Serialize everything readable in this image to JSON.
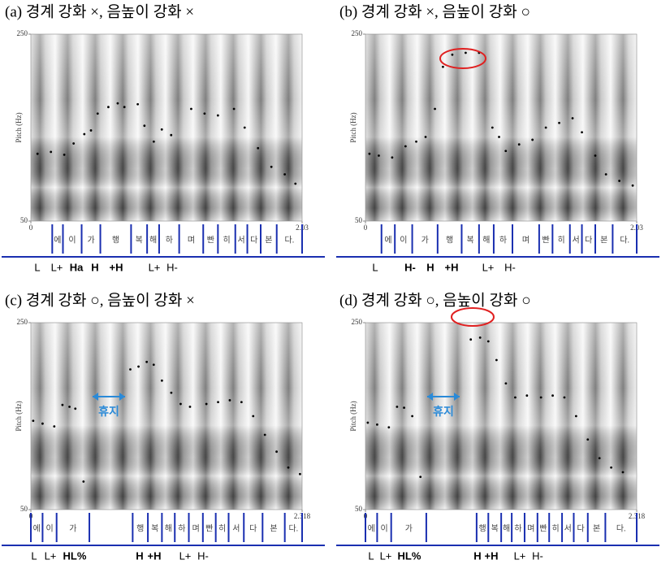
{
  "chart_data": [
    {
      "type": "scatter",
      "title": "(a) 경계 강화 ×, 음높이 강화 ×",
      "ylabel": "Pitch (Hz)",
      "ylim": [
        50,
        250
      ],
      "yticks": [
        50,
        250
      ],
      "xlim": [
        0,
        2.03
      ],
      "xticks": [
        0,
        2.03
      ],
      "color": "#000000",
      "x": [
        0.05,
        0.15,
        0.25,
        0.32,
        0.4,
        0.45,
        0.5,
        0.58,
        0.65,
        0.7,
        0.8,
        0.85,
        0.92,
        0.98,
        1.05,
        1.2,
        1.3,
        1.4,
        1.52,
        1.6,
        1.7,
        1.8,
        1.9,
        1.98
      ],
      "values": [
        122,
        124,
        121,
        133,
        143,
        147,
        165,
        172,
        176,
        172,
        175,
        152,
        135,
        148,
        142,
        170,
        165,
        163,
        170,
        150,
        128,
        108,
        100,
        90
      ],
      "syllables": [
        "에",
        "이",
        "가",
        "행",
        "복",
        "해",
        "하",
        "며",
        "빤",
        "히",
        "서",
        "다",
        "본",
        "다."
      ],
      "boundaries": [
        0.16,
        0.24,
        0.38,
        0.52,
        0.75,
        0.87,
        0.96,
        1.11,
        1.29,
        1.4,
        1.53,
        1.62,
        1.72,
        1.84,
        2.03
      ],
      "tones": [
        "L",
        "L+",
        "Ha",
        "H",
        "+H",
        "L+",
        "H-"
      ],
      "tone_highlight": [
        2
      ],
      "highlight_color": "#e02020",
      "tier_color": "#1a2fb0"
    },
    {
      "type": "scatter",
      "title": "(b) 경계 강화 ×, 음높이 강화 ○",
      "ylabel": "Pitch (Hz)",
      "ylim": [
        50,
        250
      ],
      "yticks": [
        50,
        250
      ],
      "xlim": [
        0,
        2.03
      ],
      "xticks": [
        0,
        2.03
      ],
      "color": "#000000",
      "x": [
        0.03,
        0.1,
        0.2,
        0.3,
        0.38,
        0.45,
        0.52,
        0.58,
        0.65,
        0.75,
        0.85,
        0.95,
        1.0,
        1.05,
        1.15,
        1.25,
        1.35,
        1.45,
        1.55,
        1.62,
        1.72,
        1.8,
        1.9,
        2.0
      ],
      "values": [
        122,
        120,
        118,
        130,
        135,
        140,
        170,
        215,
        228,
        230,
        230,
        150,
        140,
        125,
        132,
        137,
        150,
        155,
        160,
        145,
        120,
        100,
        93,
        88
      ],
      "syllables": [
        "에",
        "이",
        "가",
        "행",
        "복",
        "해",
        "하",
        "며",
        "빤",
        "히",
        "서",
        "다",
        "본",
        "다."
      ],
      "boundaries": [
        0.12,
        0.22,
        0.35,
        0.54,
        0.72,
        0.85,
        0.96,
        1.1,
        1.3,
        1.4,
        1.53,
        1.62,
        1.72,
        1.85,
        2.03
      ],
      "tones": [
        "L",
        "H-",
        "H",
        "+H",
        "L+",
        "H-"
      ],
      "tone_highlight": [
        1
      ],
      "highlight_color": "#e02020",
      "tier_color": "#1a2fb0"
    },
    {
      "type": "scatter",
      "title": "(c) 경계 강화 ○, 음높이 강화 ×",
      "ylabel": "Pitch (Hz)",
      "ylim": [
        50,
        250
      ],
      "yticks": [
        50,
        250
      ],
      "xlim": [
        0,
        2.318
      ],
      "xticks": [
        0,
        2.318
      ],
      "color": "#000000",
      "x": [
        0.02,
        0.1,
        0.2,
        0.27,
        0.33,
        0.38,
        0.45,
        0.85,
        0.92,
        0.99,
        1.05,
        1.12,
        1.2,
        1.28,
        1.36,
        1.5,
        1.6,
        1.7,
        1.8,
        1.9,
        2.0,
        2.1,
        2.2,
        2.3
      ],
      "values": [
        145,
        142,
        139,
        162,
        160,
        158,
        80,
        200,
        203,
        208,
        205,
        188,
        175,
        163,
        160,
        163,
        165,
        167,
        165,
        150,
        130,
        112,
        95,
        88
      ],
      "syllables": [
        "에",
        "이",
        "가",
        null,
        "행",
        "복",
        "해",
        "하",
        "며",
        "빤",
        "히",
        "서",
        "다",
        "본",
        "다."
      ],
      "boundaries": [
        0,
        0.1,
        0.22,
        0.5,
        0.87,
        1.0,
        1.12,
        1.23,
        1.35,
        1.47,
        1.58,
        1.69,
        1.82,
        1.98,
        2.17,
        2.318
      ],
      "tones": [
        "L",
        "L+",
        "HL%",
        "H",
        "+H",
        "L+",
        "H-"
      ],
      "tone_highlight": [
        2
      ],
      "highlight_color": "#e02020",
      "tier_color": "#1a2fb0",
      "annotation": "휴지"
    },
    {
      "type": "scatter",
      "title": "(d) 경계 강화 ○, 음높이 강화 ○",
      "ylabel": "Pitch (Hz)",
      "ylim": [
        50,
        250
      ],
      "yticks": [
        50,
        250
      ],
      "xlim": [
        0,
        2.318
      ],
      "xticks": [
        0,
        2.318
      ],
      "color": "#000000",
      "x": [
        0.02,
        0.1,
        0.2,
        0.27,
        0.33,
        0.4,
        0.47,
        0.9,
        0.98,
        1.05,
        1.12,
        1.2,
        1.28,
        1.38,
        1.5,
        1.6,
        1.7,
        1.8,
        1.9,
        2.0,
        2.1,
        2.2
      ],
      "values": [
        143,
        141,
        138,
        160,
        159,
        150,
        85,
        232,
        234,
        230,
        210,
        185,
        170,
        172,
        170,
        172,
        170,
        150,
        125,
        105,
        95,
        90
      ],
      "syllables": [
        "에",
        "이",
        "가",
        null,
        "행",
        "복",
        "해",
        "하",
        "며",
        "빤",
        "히",
        "서",
        "다",
        "본",
        "다."
      ],
      "boundaries": [
        0,
        0.1,
        0.22,
        0.52,
        0.95,
        1.05,
        1.16,
        1.25,
        1.36,
        1.47,
        1.57,
        1.68,
        1.78,
        1.9,
        2.05,
        2.318
      ],
      "tones": [
        "L",
        "L+",
        "HL%",
        "H",
        "+H",
        "L+",
        "H-"
      ],
      "tone_highlight": [
        2
      ],
      "highlight_color": "#e02020",
      "tier_color": "#1a2fb0",
      "annotation": "휴지"
    }
  ]
}
